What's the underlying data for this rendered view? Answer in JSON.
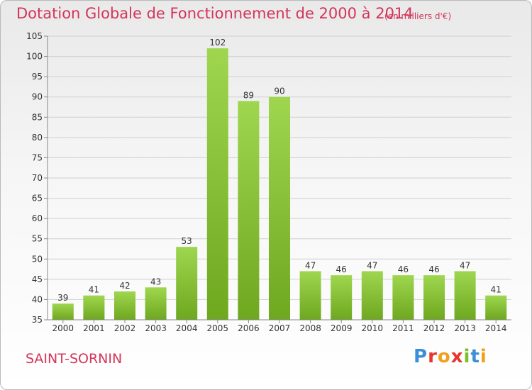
{
  "header": {
    "title": "Dotation Globale de Fonctionnement de 2000 à 2014",
    "subtitle": "(en milliers d'€)"
  },
  "footer": {
    "commune": "SAINT-SORNIN",
    "logo_letters": [
      "P",
      "r",
      "o",
      "x",
      "i",
      "t",
      "i"
    ],
    "logo_colors": [
      "#3a8fd8",
      "#e8352e",
      "#f0a01e",
      "#e8352e",
      "#7bbf2a",
      "#3a8fd8",
      "#f0a01e"
    ]
  },
  "chart_data": {
    "type": "bar",
    "categories": [
      "2000",
      "2001",
      "2002",
      "2003",
      "2004",
      "2005",
      "2006",
      "2007",
      "2008",
      "2009",
      "2010",
      "2011",
      "2012",
      "2013",
      "2014"
    ],
    "values": [
      39,
      41,
      42,
      43,
      53,
      102,
      89,
      90,
      47,
      46,
      47,
      46,
      46,
      47,
      41
    ],
    "data_labels": [
      "39",
      "41",
      "42",
      "43",
      "53",
      "102",
      "89",
      "90",
      "47",
      "46",
      "47",
      "46",
      "46",
      "47",
      "41"
    ],
    "title": "Dotation Globale de Fonctionnement de 2000 à 2014",
    "ylim": [
      35,
      105
    ],
    "yticks": [
      35,
      40,
      45,
      50,
      55,
      60,
      65,
      70,
      75,
      80,
      85,
      90,
      95,
      100,
      105
    ],
    "ytick_labels": [
      "35",
      "40",
      "45",
      "50",
      "55",
      "60",
      "65",
      "70",
      "75",
      "80",
      "85",
      "90",
      "95",
      "100",
      "105"
    ],
    "grid": true,
    "bar_color_top": "#9fd64f",
    "bar_color_bottom": "#6ea81f"
  }
}
